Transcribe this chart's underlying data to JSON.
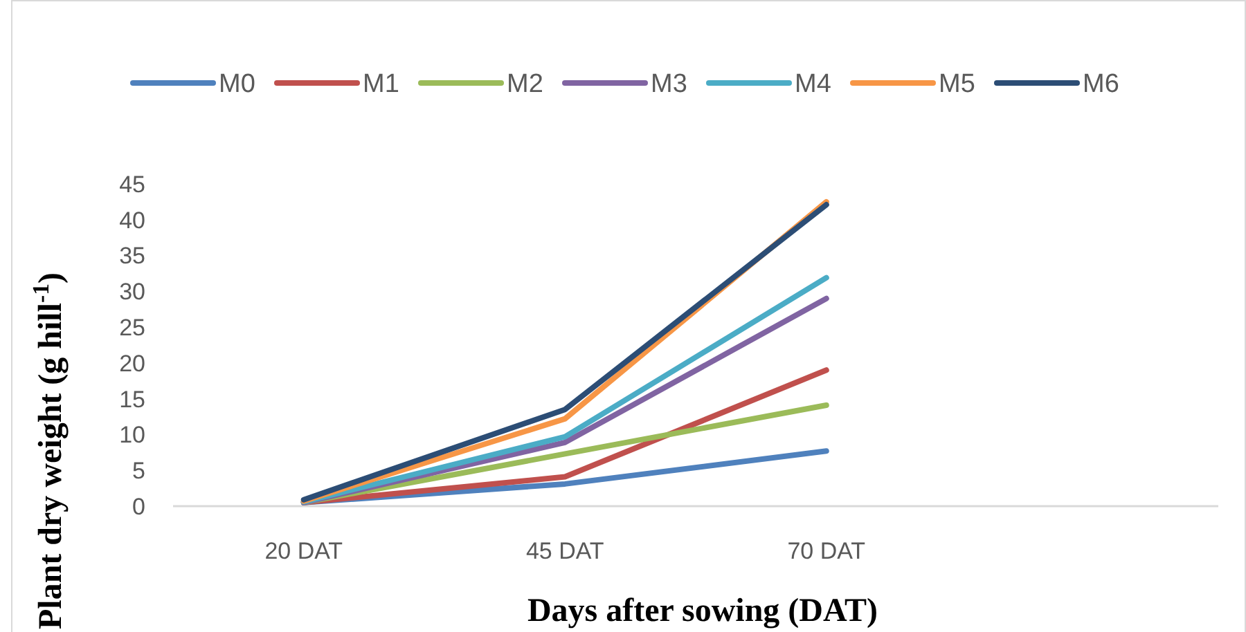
{
  "chart_data": {
    "type": "line",
    "xlabel": "Days after sowing (DAT)",
    "ylabel": "Plant dry weight (g hill$^{-1}$)",
    "categories": [
      "20 DAT",
      "45 DAT",
      "70 DAT",
      null
    ],
    "ylim": [
      0,
      45
    ],
    "yticks": [
      0,
      5,
      10,
      15,
      20,
      25,
      30,
      35,
      40,
      45
    ],
    "grid": false,
    "legend": "top",
    "marker": "none",
    "line_style": "solid",
    "series": [
      {
        "name": "M0",
        "color": "#4f81bd",
        "values": [
          0.5,
          3.1,
          7.7,
          null
        ]
      },
      {
        "name": "M1",
        "color": "#c0504d",
        "values": [
          0.5,
          4.1,
          19,
          null
        ]
      },
      {
        "name": "M2",
        "color": "#9bbb59",
        "values": [
          0.5,
          7.3,
          14.1,
          null
        ]
      },
      {
        "name": "M3",
        "color": "#8064a2",
        "values": [
          0.5,
          8.9,
          29,
          null
        ]
      },
      {
        "name": "M4",
        "color": "#4bacc6",
        "values": [
          0.6,
          9.7,
          31.9,
          null
        ]
      },
      {
        "name": "M5",
        "color": "#f79646",
        "values": [
          0.7,
          12.2,
          42.5,
          null
        ]
      },
      {
        "name": "M6",
        "color": "#2c4d75",
        "values": [
          0.9,
          13.5,
          42.1,
          null
        ]
      }
    ]
  }
}
